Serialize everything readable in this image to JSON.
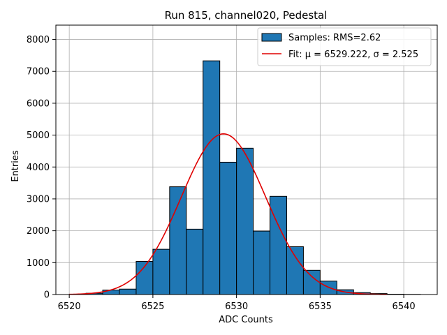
{
  "chart_data": {
    "type": "bar",
    "title": "Run 815, channel020, Pedestal",
    "xlabel": "ADC Counts",
    "ylabel": "Entries",
    "xlim": [
      6519.2,
      6542.0
    ],
    "ylim": [
      0,
      8450
    ],
    "xticks": [
      6520,
      6525,
      6530,
      6535,
      6540
    ],
    "yticks": [
      0,
      1000,
      2000,
      3000,
      4000,
      5000,
      6000,
      7000,
      8000
    ],
    "grid": true,
    "legend_position": "top-right",
    "bar_color": "#1f77b4",
    "fit_color": "#e00000",
    "histogram": {
      "name": "Samples: RMS=2.62",
      "bin_edges": [
        6520,
        6521,
        6522,
        6523,
        6524,
        6525,
        6526,
        6527,
        6528,
        6529,
        6530,
        6531,
        6532,
        6533,
        6534,
        6535,
        6536,
        6537,
        6538,
        6539,
        6540,
        6541
      ],
      "counts": [
        5,
        40,
        140,
        170,
        1040,
        1420,
        3380,
        2050,
        7330,
        4150,
        4590,
        1990,
        3080,
        1500,
        760,
        420,
        150,
        60,
        30,
        10,
        5
      ]
    },
    "fit": {
      "name": "Fit: μ = 6529.222, σ = 2.525",
      "mu": 6529.222,
      "sigma": 2.525,
      "amplitude": 5040,
      "x_range": [
        6520,
        6539
      ]
    }
  }
}
